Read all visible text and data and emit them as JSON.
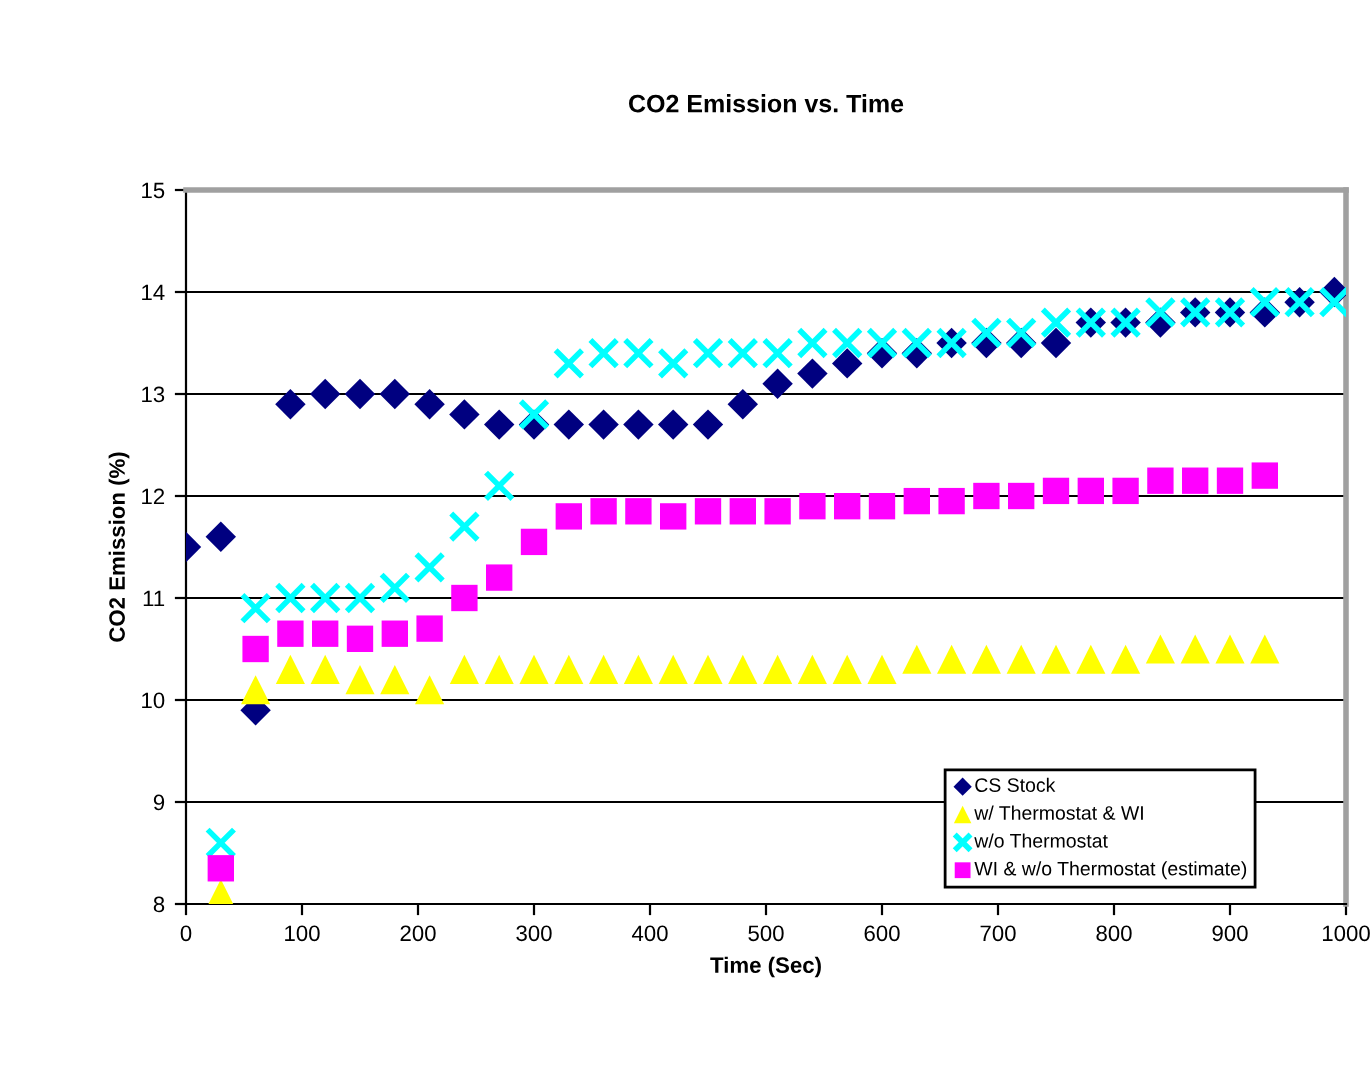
{
  "chart_data": {
    "type": "scatter",
    "title": "CO2 Emission vs. Time",
    "xlabel": "Time (Sec)",
    "ylabel": "CO2 Emission (%)",
    "xlim": [
      0,
      1000
    ],
    "xticks": [
      0,
      100,
      200,
      300,
      400,
      500,
      600,
      700,
      800,
      900,
      1000
    ],
    "ylim": [
      8,
      15
    ],
    "yticks": [
      8,
      9,
      10,
      11,
      12,
      13,
      14,
      15
    ],
    "grid": "y",
    "legend": "bottom right",
    "series": [
      {
        "name": "CS Stock",
        "color": "#000080",
        "marker": "diamond",
        "x": [
          0,
          30,
          60,
          90,
          120,
          150,
          180,
          210,
          240,
          270,
          300,
          330,
          360,
          390,
          420,
          450,
          480,
          510,
          540,
          570,
          600,
          630,
          660,
          690,
          720,
          750,
          780,
          810,
          840,
          870,
          900,
          930,
          960,
          990
        ],
        "values": [
          11.5,
          11.6,
          9.9,
          12.9,
          13.0,
          13.0,
          13.0,
          12.9,
          12.8,
          12.7,
          12.7,
          12.7,
          12.7,
          12.7,
          12.7,
          12.7,
          12.9,
          13.1,
          13.2,
          13.3,
          13.4,
          13.4,
          13.5,
          13.5,
          13.5,
          13.5,
          13.7,
          13.7,
          13.7,
          13.8,
          13.8,
          13.8,
          13.9,
          14.0
        ]
      },
      {
        "name": "w/ Thermostat & WI",
        "color": "#ffff00",
        "marker": "triangle",
        "x": [
          30,
          60,
          90,
          120,
          150,
          180,
          210,
          240,
          270,
          300,
          330,
          360,
          390,
          420,
          450,
          480,
          510,
          540,
          570,
          600,
          630,
          660,
          690,
          720,
          750,
          780,
          810,
          840,
          870,
          900,
          930
        ],
        "values": [
          8.1,
          10.1,
          10.3,
          10.3,
          10.2,
          10.2,
          10.1,
          10.3,
          10.3,
          10.3,
          10.3,
          10.3,
          10.3,
          10.3,
          10.3,
          10.3,
          10.3,
          10.3,
          10.3,
          10.3,
          10.4,
          10.4,
          10.4,
          10.4,
          10.4,
          10.4,
          10.4,
          10.5,
          10.5,
          10.5,
          10.5
        ]
      },
      {
        "name": "w/o Thermostat",
        "color": "#00ffff",
        "marker": "cross",
        "x": [
          30,
          60,
          90,
          120,
          150,
          180,
          210,
          240,
          270,
          300,
          330,
          360,
          390,
          420,
          450,
          480,
          510,
          540,
          570,
          600,
          630,
          660,
          690,
          720,
          750,
          780,
          810,
          840,
          870,
          900,
          930,
          960,
          990
        ],
        "values": [
          8.6,
          10.9,
          11.0,
          11.0,
          11.0,
          11.1,
          11.3,
          11.7,
          12.1,
          12.8,
          13.3,
          13.4,
          13.4,
          13.3,
          13.4,
          13.4,
          13.4,
          13.5,
          13.5,
          13.5,
          13.5,
          13.5,
          13.6,
          13.6,
          13.7,
          13.7,
          13.7,
          13.8,
          13.8,
          13.8,
          13.9,
          13.9,
          13.9
        ]
      },
      {
        "name": "WI & w/o Thermostat (estimate)",
        "color": "#ff00ff",
        "marker": "square",
        "x": [
          30,
          60,
          90,
          120,
          150,
          180,
          210,
          240,
          270,
          300,
          330,
          360,
          390,
          420,
          450,
          480,
          510,
          540,
          570,
          600,
          630,
          660,
          690,
          720,
          750,
          780,
          810,
          840,
          870,
          900,
          930
        ],
        "values": [
          8.35,
          10.5,
          10.65,
          10.65,
          10.6,
          10.65,
          10.7,
          11.0,
          11.2,
          11.55,
          11.8,
          11.85,
          11.85,
          11.8,
          11.85,
          11.85,
          11.85,
          11.9,
          11.9,
          11.9,
          11.95,
          11.95,
          12.0,
          12.0,
          12.05,
          12.05,
          12.05,
          12.15,
          12.15,
          12.15,
          12.2
        ]
      }
    ]
  }
}
